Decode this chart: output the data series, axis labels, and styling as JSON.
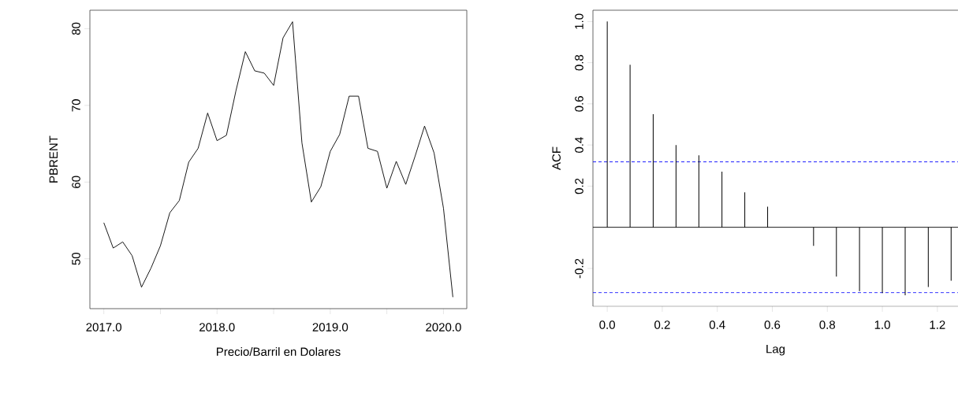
{
  "chart_data": [
    {
      "type": "line",
      "xlabel": "Precio/Barril en Dolares",
      "ylabel": "PBRENT",
      "x": [
        2017.0,
        2017.083,
        2017.167,
        2017.25,
        2017.333,
        2017.417,
        2017.5,
        2017.583,
        2017.667,
        2017.75,
        2017.833,
        2017.917,
        2018.0,
        2018.083,
        2018.167,
        2018.25,
        2018.333,
        2018.417,
        2018.5,
        2018.583,
        2018.667,
        2018.75,
        2018.833,
        2018.917,
        2019.0,
        2019.083,
        2019.167,
        2019.25,
        2019.333,
        2019.417,
        2019.5,
        2019.583,
        2019.667,
        2019.75,
        2019.833,
        2019.917,
        2020.0,
        2020.083
      ],
      "series": [
        {
          "color": "#000000",
          "values": [
            54.7,
            51.4,
            52.2,
            50.4,
            46.3,
            48.8,
            51.7,
            56.0,
            57.6,
            62.6,
            64.4,
            69.0,
            65.4,
            66.1,
            71.9,
            77.0,
            74.5,
            74.2,
            72.6,
            78.8,
            80.9,
            65.1,
            57.4,
            59.4,
            64.0,
            66.2,
            71.2,
            71.2,
            64.4,
            64.0,
            59.2,
            62.7,
            59.7,
            63.4,
            67.3,
            63.8,
            56.6,
            45.0
          ]
        }
      ],
      "xlim": [
        2016.877,
        2020.206
      ],
      "ylim": [
        43.5,
        82.4
      ],
      "xticks": [
        {
          "value": 2017,
          "label": "2017.0"
        },
        {
          "value": 2017.5,
          "label": null
        },
        {
          "value": 2018,
          "label": "2018.0"
        },
        {
          "value": 2018.5,
          "label": null
        },
        {
          "value": 2019,
          "label": "2019.0"
        },
        {
          "value": 2019.5,
          "label": null
        },
        {
          "value": 2020,
          "label": "2020.0"
        }
      ],
      "yticks": [
        50,
        60,
        70,
        80
      ]
    },
    {
      "type": "bar",
      "xlabel": "Lag",
      "ylabel": "ACF",
      "x": [
        0,
        0.083,
        0.167,
        0.25,
        0.333,
        0.417,
        0.5,
        0.583,
        0.667,
        0.75,
        0.833,
        0.917,
        1.0,
        1.083,
        1.167,
        1.25
      ],
      "series": [
        {
          "color": "#000000",
          "values": [
            1.0,
            0.79,
            0.55,
            0.4,
            0.35,
            0.27,
            0.17,
            0.1,
            0.0,
            -0.09,
            -0.24,
            -0.31,
            -0.32,
            -0.33,
            -0.29,
            -0.26
          ]
        }
      ],
      "xlim": [
        -0.052,
        1.275
      ],
      "ylim": [
        -0.384,
        1.055
      ],
      "xticks": [
        {
          "value": 0,
          "label": "0.0"
        },
        0.2,
        0.4,
        0.6,
        0.8,
        {
          "value": 1,
          "label": "1.0"
        },
        1.2
      ],
      "yticks": [
        -0.2,
        0.2,
        0.4,
        0.6,
        0.8,
        {
          "value": 1,
          "label": "1.0"
        }
      ],
      "ref_lines": [
        {
          "axis": "y",
          "value": 0,
          "color": "#000000",
          "line_style": "solid"
        },
        {
          "axis": "y",
          "value": 0.318,
          "color": "#0000ff",
          "line_style": "dashed"
        },
        {
          "axis": "y",
          "value": -0.318,
          "color": "#0000ff",
          "line_style": "dashed"
        }
      ]
    }
  ]
}
